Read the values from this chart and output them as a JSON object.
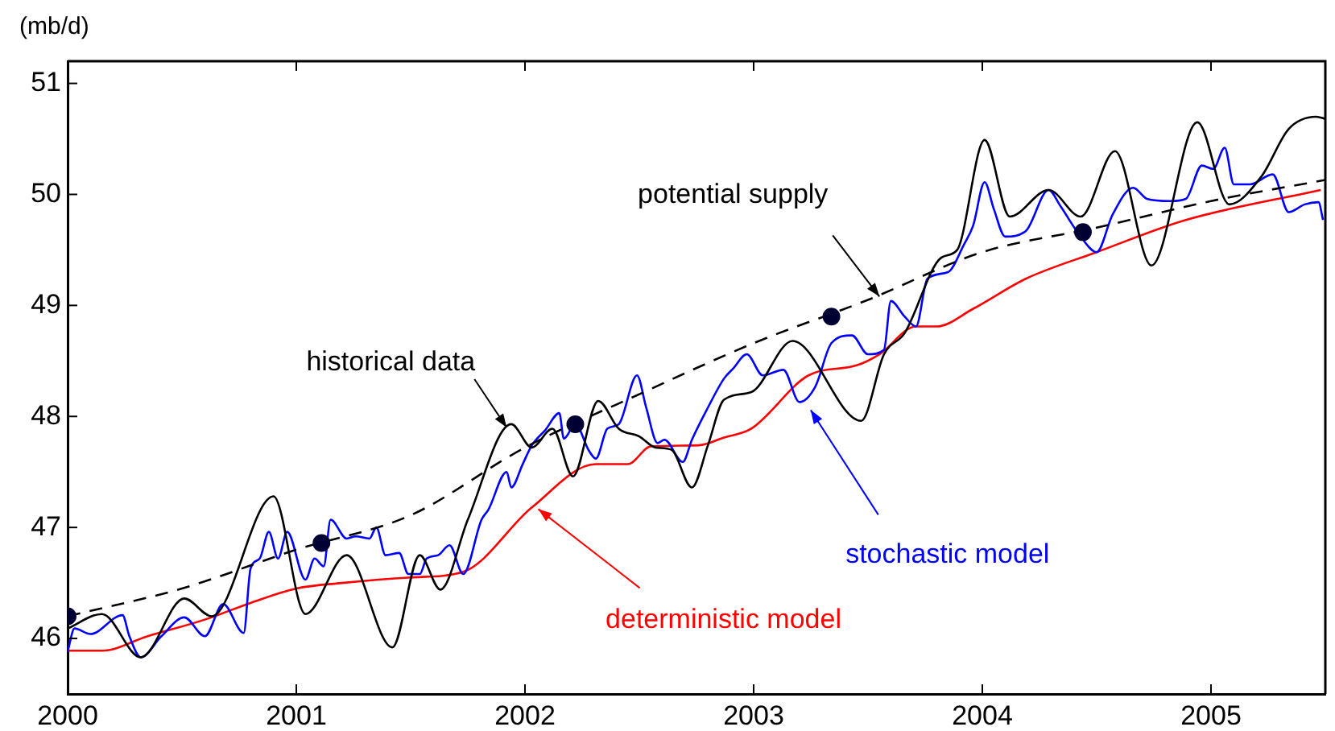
{
  "chart_data": {
    "type": "line",
    "ylabel": "(mb/d)",
    "xlim": [
      2000,
      2005.5
    ],
    "ylim": [
      45.5,
      51.2
    ],
    "xticks": [
      2000,
      2001,
      2002,
      2003,
      2004,
      2005
    ],
    "yticks": [
      46,
      47,
      48,
      49,
      50,
      51
    ],
    "grid": false,
    "legend": false,
    "marker": "none",
    "line_style": "solid",
    "annotations": [
      {
        "text": "historical data",
        "x": 2001.92,
        "y": 47.9
      },
      {
        "text": "potential supply",
        "x": 2003.55,
        "y": 49.08
      }
    ],
    "series": [
      {
        "color": "#000000",
        "x": [
          2000,
          2000.15,
          2000.32,
          2000.51,
          2000.63,
          2000.9,
          2001.04,
          2001.22,
          2001.42,
          2001.54,
          2001.63,
          2001.75,
          2001.94,
          2002.03,
          2002.12,
          2002.21,
          2002.32,
          2002.41,
          2002.5,
          2002.57,
          2002.64,
          2002.73,
          2002.8,
          2002.87,
          2002.99,
          2003.17,
          2003.47,
          2003.57,
          2003.66,
          2003.82,
          2003.89,
          2004.01,
          2004.12,
          2004.29,
          2004.43,
          2004.58,
          2004.74,
          2004.94,
          2005.08,
          2005.22,
          2005.34,
          2005.46,
          2005.5
        ],
        "values": [
          46.09,
          46.22,
          45.83,
          46.36,
          46.2,
          47.28,
          46.22,
          46.75,
          45.92,
          46.75,
          46.44,
          47.07,
          47.93,
          47.72,
          47.89,
          47.46,
          48.14,
          47.89,
          47.82,
          47.72,
          47.7,
          47.36,
          47.74,
          48.15,
          48.22,
          48.68,
          47.96,
          48.56,
          48.75,
          49.43,
          49.5,
          50.49,
          49.8,
          50.04,
          49.8,
          50.39,
          49.36,
          50.65,
          49.91,
          50.16,
          50.59,
          50.7,
          50.68
        ]
      },
      {
        "color": "#000000",
        "line_style": "dashed",
        "x": [
          2000,
          2000.5,
          2001,
          2001.5,
          2002,
          2002.5,
          2003,
          2003.5,
          2004,
          2004.5,
          2005,
          2005.5
        ],
        "values": [
          46.2,
          46.45,
          46.8,
          47.11,
          47.72,
          48.2,
          48.66,
          49.05,
          49.48,
          49.7,
          49.94,
          50.13
        ]
      },
      {
        "name": "stochastic model",
        "color": "#0000ff",
        "x": [
          2000,
          2000.03,
          2000.1,
          2000.24,
          2000.27,
          2000.32,
          2000.41,
          2000.51,
          2000.6,
          2000.68,
          2000.77,
          2000.8,
          2000.84,
          2000.88,
          2000.92,
          2000.96,
          2001.04,
          2001.08,
          2001.12,
          2001.15,
          2001.22,
          2001.26,
          2001.32,
          2001.35,
          2001.39,
          2001.45,
          2001.49,
          2001.54,
          2001.57,
          2001.62,
          2001.67,
          2001.73,
          2001.81,
          2001.84,
          2001.92,
          2001.94,
          2001.99,
          2002.03,
          2002.09,
          2002.15,
          2002.17,
          2002.22,
          2002.28,
          2002.31,
          2002.36,
          2002.41,
          2002.49,
          2002.53,
          2002.58,
          2002.61,
          2002.69,
          2002.73,
          2002.8,
          2002.87,
          2002.91,
          2002.97,
          2003.04,
          2003.13,
          2003.2,
          2003.27,
          2003.34,
          2003.43,
          2003.5,
          2003.57,
          2003.6,
          2003.66,
          2003.71,
          2003.76,
          2003.85,
          2003.92,
          2003.96,
          2004.01,
          2004.05,
          2004.1,
          2004.19,
          2004.29,
          2004.34,
          2004.43,
          2004.5,
          2004.57,
          2004.66,
          2004.72,
          2004.82,
          2004.89,
          2004.96,
          2005.01,
          2005.06,
          2005.1,
          2005.17,
          2005.27,
          2005.34,
          2005.41,
          2005.47,
          2005.49
        ],
        "values": [
          45.88,
          46.09,
          46.04,
          46.21,
          46.02,
          45.83,
          46.02,
          46.19,
          46.02,
          46.31,
          46.05,
          46.63,
          46.72,
          46.96,
          46.72,
          46.96,
          46.53,
          46.72,
          46.65,
          47.07,
          46.9,
          46.92,
          46.9,
          47.0,
          46.75,
          46.77,
          46.58,
          46.58,
          46.72,
          46.75,
          46.84,
          46.58,
          47.07,
          47.16,
          47.5,
          47.36,
          47.57,
          47.74,
          47.88,
          48.03,
          47.8,
          47.93,
          47.69,
          47.62,
          47.89,
          47.93,
          48.37,
          48.08,
          47.76,
          47.79,
          47.59,
          47.79,
          48.08,
          48.34,
          48.43,
          48.56,
          48.37,
          48.42,
          48.13,
          48.27,
          48.66,
          48.73,
          48.56,
          48.6,
          49.04,
          48.9,
          48.81,
          49.24,
          49.3,
          49.55,
          49.72,
          50.11,
          49.87,
          49.62,
          49.67,
          50.04,
          49.9,
          49.62,
          49.48,
          49.82,
          50.06,
          49.96,
          49.94,
          49.96,
          50.26,
          50.23,
          50.42,
          50.09,
          50.09,
          50.18,
          49.84,
          49.91,
          49.93,
          49.77
        ]
      },
      {
        "name": "deterministic model",
        "color": "#ff0000",
        "x": [
          2000,
          2000.15,
          2000.35,
          2000.6,
          2000.8,
          2001.0,
          2001.2,
          2001.5,
          2001.73,
          2002.03,
          2002.31,
          2002.45,
          2002.55,
          2002.76,
          2002.87,
          2002.99,
          2003.24,
          2003.45,
          2003.55,
          2003.71,
          2003.8,
          2003.96,
          2004.19,
          2004.5,
          2004.89,
          2005.48
        ],
        "values": [
          45.89,
          45.89,
          46.02,
          46.17,
          46.32,
          46.45,
          46.5,
          46.55,
          46.6,
          47.18,
          47.57,
          47.57,
          47.73,
          47.74,
          47.81,
          47.89,
          48.37,
          48.46,
          48.56,
          48.81,
          48.81,
          48.97,
          49.24,
          49.48,
          49.77,
          50.04
        ]
      },
      {
        "type": "scatter",
        "color": "#000033",
        "marker": "circle",
        "x": [
          2000,
          2001.11,
          2002.22,
          2003.34,
          2004.44
        ],
        "values": [
          46.2,
          46.86,
          47.93,
          48.9,
          49.66
        ]
      }
    ]
  }
}
